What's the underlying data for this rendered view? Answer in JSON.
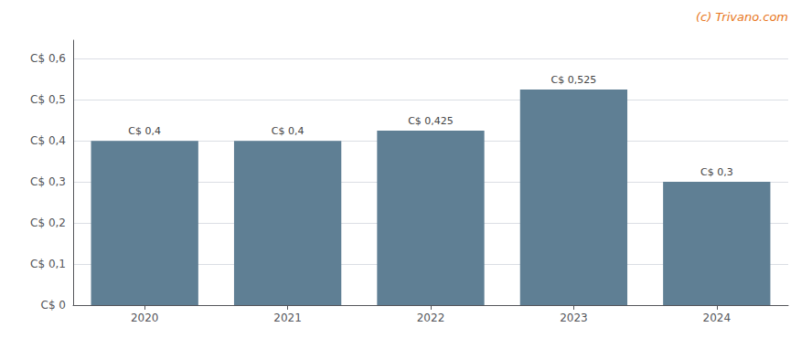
{
  "chart_data": {
    "type": "bar",
    "categories": [
      "2020",
      "2021",
      "2022",
      "2023",
      "2024"
    ],
    "values": [
      0.4,
      0.4,
      0.425,
      0.525,
      0.3
    ],
    "value_labels": [
      "C$ 0,4",
      "C$ 0,4",
      "C$ 0,425",
      "C$ 0,525",
      "C$ 0,3"
    ],
    "data_labels": true,
    "color": "#5f7f94",
    "ylim": [
      0,
      0.645
    ],
    "yticks": [
      {
        "value": 0,
        "label": "C$ 0"
      },
      {
        "value": 0.1,
        "label": "C$ 0,1"
      },
      {
        "value": 0.2,
        "label": "C$ 0,2"
      },
      {
        "value": 0.3,
        "label": "C$ 0,3"
      },
      {
        "value": 0.4,
        "label": "C$ 0,4"
      },
      {
        "value": 0.5,
        "label": "C$ 0,5"
      },
      {
        "value": 0.6,
        "label": "C$ 0,6"
      }
    ],
    "grid": true,
    "annotations": [
      {
        "text": "(c) Trivano.com",
        "color": "#e87722"
      }
    ]
  }
}
